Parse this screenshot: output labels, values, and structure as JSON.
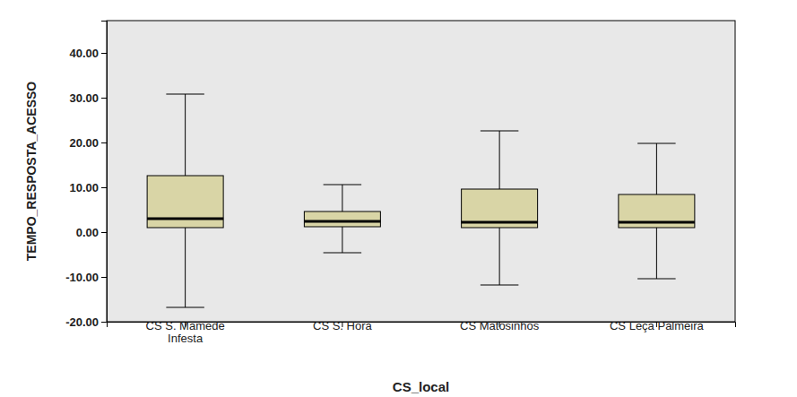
{
  "chart_data": {
    "type": "box",
    "x_label": "CS_local",
    "y_label": "TEMPO_RESPOSTA_ACESSO",
    "categories": [
      "CS S. Mamede Infesta",
      "CS S. Hora",
      "CS Matosinhos",
      "CS Leça Palmeira"
    ],
    "whisker_low": [
      -16.8,
      -4.6,
      -11.8,
      -10.4
    ],
    "q1": [
      1.0,
      1.2,
      1.0,
      1.0
    ],
    "median": [
      3.0,
      2.4,
      2.2,
      2.2
    ],
    "q3": [
      12.6,
      4.6,
      9.6,
      8.4
    ],
    "whisker_high": [
      30.8,
      10.6,
      22.6,
      19.8
    ],
    "color": "#d9d5a6",
    "ylim": [
      -20,
      47.2
    ],
    "yticks": [
      {
        "value": -20,
        "label": "-20.00"
      },
      {
        "value": -10,
        "label": "-10.00"
      },
      {
        "value": 0,
        "label": "0.00"
      },
      {
        "value": 10,
        "label": "10.00"
      },
      {
        "value": 20,
        "label": "20.00"
      },
      {
        "value": 30,
        "label": "30.00"
      },
      {
        "value": 40,
        "label": "40.00"
      }
    ],
    "grid": false
  }
}
